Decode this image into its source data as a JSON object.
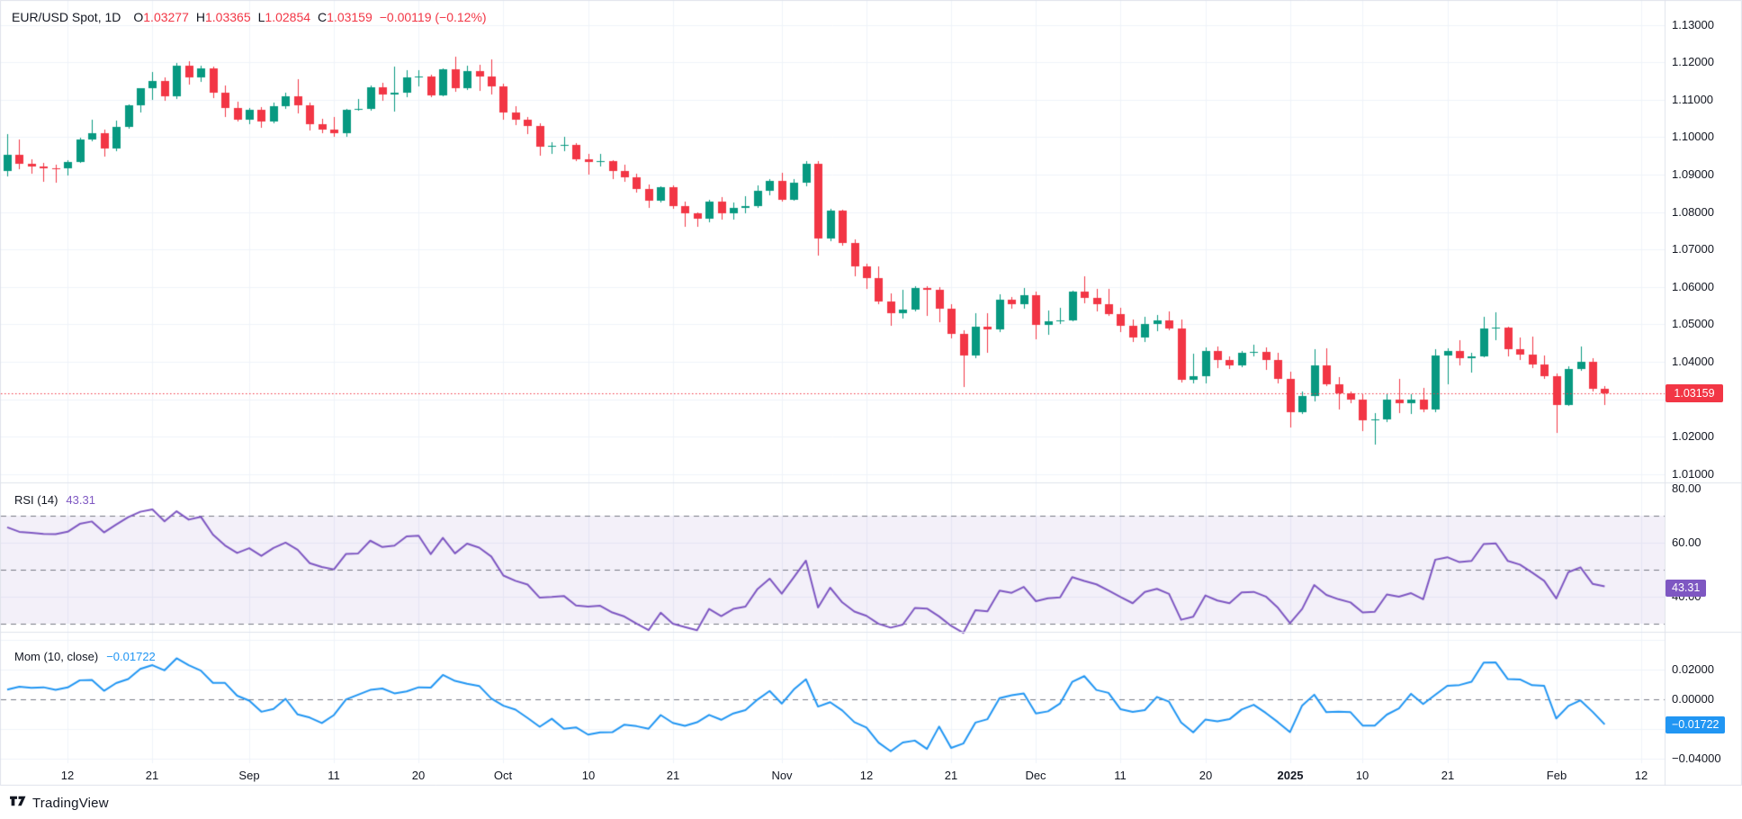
{
  "legend": {
    "symbol": "EUR/USD Spot, 1D",
    "items": [
      {
        "k": "O",
        "v": "1.03277"
      },
      {
        "k": "H",
        "v": "1.03365"
      },
      {
        "k": "L",
        "v": "1.02854"
      },
      {
        "k": "C",
        "v": "1.03159"
      }
    ],
    "change": "−0.00119 (−0.12%)"
  },
  "rsi_legend": {
    "title": "RSI (14)",
    "value": "43.31"
  },
  "mom_legend": {
    "title": "Mom (10, close)",
    "value": "−0.01722"
  },
  "badges": {
    "price": "1.03159",
    "rsi": "43.31",
    "mom": "−0.01722"
  },
  "logo": {
    "text": "TradingView"
  },
  "chart_data": {
    "type": "candlestick",
    "symbol": "EUR/USD Spot",
    "interval": "1D",
    "last_price": 1.03159,
    "colors": {
      "up": "#089981",
      "down": "#F23645",
      "grid": "#F0F3FA",
      "divider": "#E0E3EB",
      "dashed": "#787B86",
      "rsi_line": "#7E57C2",
      "rsi_band": "rgba(126,87,194,0.09)",
      "mom_line": "#2196F3",
      "price_line": "#F23645",
      "text": "#131722"
    },
    "indicators": {
      "rsi": {
        "period": 14,
        "last": 43.31,
        "upper": 70,
        "middle": 50,
        "lower": 30
      },
      "momentum": {
        "period": 10,
        "source": "close",
        "last": -0.01722
      }
    },
    "price_axis": [
      "1.13000",
      "1.12000",
      "1.11000",
      "1.10000",
      "1.09000",
      "1.08000",
      "1.07000",
      "1.06000",
      "1.05000",
      "1.04000",
      "1.02000",
      "1.01000"
    ],
    "rsi_axis": [
      "80.00",
      "60.00",
      "40.00"
    ],
    "mom_axis": [
      "0.02000",
      "0.00000",
      "−0.04000"
    ],
    "mom_gridlines": [
      0.04,
      0.02,
      -0.02,
      -0.04
    ],
    "rsi_gridlines": [
      60,
      40
    ],
    "time_axis": [
      {
        "label": "12",
        "index": 5
      },
      {
        "label": "21",
        "index": 12
      },
      {
        "label": "Sep",
        "index": 20
      },
      {
        "label": "11",
        "index": 27
      },
      {
        "label": "20",
        "index": 34
      },
      {
        "label": "Oct",
        "index": 41
      },
      {
        "label": "10",
        "index": 48
      },
      {
        "label": "21",
        "index": 55
      },
      {
        "label": "Nov",
        "index": 64
      },
      {
        "label": "12",
        "index": 71
      },
      {
        "label": "21",
        "index": 78
      },
      {
        "label": "Dec",
        "index": 85
      },
      {
        "label": "11",
        "index": 92
      },
      {
        "label": "20",
        "index": 99
      },
      {
        "label": "2025",
        "index": 106,
        "bold": true
      },
      {
        "label": "10",
        "index": 112
      },
      {
        "label": "21",
        "index": 119
      },
      {
        "label": "Feb",
        "index": 128
      },
      {
        "label": "12",
        "index": 135
      }
    ],
    "pre_closes": [
      1.089,
      1.0846,
      1.0849,
      1.084,
      1.0856,
      1.0857,
      1.0868,
      1.0885,
      1.0917,
      1.0921
    ],
    "candles": [
      [
        1.091,
        1.1008,
        1.0895,
        1.0952
      ],
      [
        1.0952,
        1.0995,
        1.0914,
        1.0928
      ],
      [
        1.0928,
        1.0941,
        1.0902,
        1.0923
      ],
      [
        1.0923,
        1.0932,
        1.0881,
        1.0918
      ],
      [
        1.0918,
        1.0927,
        1.0878,
        1.0917
      ],
      [
        1.0917,
        1.0938,
        1.0899,
        1.0934
      ],
      [
        1.0934,
        1.0999,
        1.0931,
        1.0993
      ],
      [
        1.0993,
        1.1047,
        1.0989,
        1.1012
      ],
      [
        1.1012,
        1.102,
        1.0949,
        1.0971
      ],
      [
        1.0971,
        1.1044,
        1.0963,
        1.1027
      ],
      [
        1.1027,
        1.1087,
        1.1022,
        1.1085
      ],
      [
        1.1085,
        1.1131,
        1.1065,
        1.113
      ],
      [
        1.113,
        1.1174,
        1.11,
        1.115
      ],
      [
        1.115,
        1.116,
        1.1098,
        1.111
      ],
      [
        1.111,
        1.1199,
        1.1103,
        1.119
      ],
      [
        1.119,
        1.1202,
        1.114,
        1.1161
      ],
      [
        1.1161,
        1.119,
        1.1147,
        1.1183
      ],
      [
        1.1183,
        1.1188,
        1.1104,
        1.112
      ],
      [
        1.112,
        1.1139,
        1.1055,
        1.1078
      ],
      [
        1.1078,
        1.1094,
        1.1042,
        1.1048
      ],
      [
        1.1048,
        1.1078,
        1.1034,
        1.1073
      ],
      [
        1.1073,
        1.108,
        1.1026,
        1.1043
      ],
      [
        1.1043,
        1.1093,
        1.1037,
        1.1082
      ],
      [
        1.1082,
        1.112,
        1.1075,
        1.111
      ],
      [
        1.111,
        1.1155,
        1.1064,
        1.1085
      ],
      [
        1.1085,
        1.1092,
        1.1018,
        1.1035
      ],
      [
        1.1035,
        1.105,
        1.101,
        1.102
      ],
      [
        1.102,
        1.1055,
        1.1002,
        1.1011
      ],
      [
        1.1011,
        1.1075,
        1.1001,
        1.1074
      ],
      [
        1.1074,
        1.1102,
        1.1071,
        1.1076
      ],
      [
        1.1076,
        1.1138,
        1.1072,
        1.1133
      ],
      [
        1.1133,
        1.1146,
        1.1098,
        1.1113
      ],
      [
        1.1113,
        1.1189,
        1.1069,
        1.1119
      ],
      [
        1.1119,
        1.1179,
        1.1108,
        1.116
      ],
      [
        1.116,
        1.118,
        1.1135,
        1.1163
      ],
      [
        1.1163,
        1.1167,
        1.1106,
        1.1111
      ],
      [
        1.1111,
        1.1183,
        1.1109,
        1.1181
      ],
      [
        1.1181,
        1.1214,
        1.1122,
        1.1132
      ],
      [
        1.1132,
        1.119,
        1.1126,
        1.1176
      ],
      [
        1.1176,
        1.1193,
        1.1124,
        1.1163
      ],
      [
        1.1163,
        1.1209,
        1.1113,
        1.1135
      ],
      [
        1.1135,
        1.1143,
        1.1046,
        1.1067
      ],
      [
        1.1067,
        1.1082,
        1.1032,
        1.1046
      ],
      [
        1.1046,
        1.1053,
        1.1008,
        1.1031
      ],
      [
        1.1031,
        1.1038,
        1.0951,
        1.0975
      ],
      [
        1.0975,
        1.0987,
        1.0955,
        1.0977
      ],
      [
        1.0977,
        1.1,
        1.0962,
        1.098
      ],
      [
        1.098,
        1.0984,
        1.0936,
        1.094
      ],
      [
        1.094,
        1.0955,
        1.09,
        1.0935
      ],
      [
        1.0935,
        1.0955,
        1.0921,
        1.0937
      ],
      [
        1.0937,
        1.0938,
        1.0889,
        1.091
      ],
      [
        1.091,
        1.0927,
        1.0881,
        1.0893
      ],
      [
        1.0893,
        1.0902,
        1.0853,
        1.0862
      ],
      [
        1.0862,
        1.0874,
        1.0811,
        1.083
      ],
      [
        1.083,
        1.087,
        1.0826,
        1.0866
      ],
      [
        1.0866,
        1.0872,
        1.081,
        1.0815
      ],
      [
        1.0815,
        1.0827,
        1.0761,
        1.0798
      ],
      [
        1.0798,
        1.08,
        1.0761,
        1.0782
      ],
      [
        1.0782,
        1.0832,
        1.0772,
        1.0827
      ],
      [
        1.0827,
        1.0839,
        1.0781,
        1.0796
      ],
      [
        1.0796,
        1.0826,
        1.078,
        1.0812
      ],
      [
        1.0812,
        1.0843,
        1.0796,
        1.0817
      ],
      [
        1.0817,
        1.0871,
        1.0812,
        1.0857
      ],
      [
        1.0857,
        1.0888,
        1.0844,
        1.0883
      ],
      [
        1.0883,
        1.0905,
        1.0828,
        1.0834
      ],
      [
        1.0834,
        1.0889,
        1.083,
        1.0878
      ],
      [
        1.0878,
        1.0937,
        1.0869,
        1.093
      ],
      [
        1.093,
        1.0937,
        1.0683,
        1.073
      ],
      [
        1.073,
        1.081,
        1.0722,
        1.0804
      ],
      [
        1.0804,
        1.0806,
        1.071,
        1.0718
      ],
      [
        1.0718,
        1.0728,
        1.0629,
        1.0655
      ],
      [
        1.0655,
        1.0663,
        1.0595,
        1.0624
      ],
      [
        1.0624,
        1.0655,
        1.0555,
        1.0562
      ],
      [
        1.0562,
        1.0582,
        1.0497,
        1.053
      ],
      [
        1.053,
        1.0592,
        1.0516,
        1.054
      ],
      [
        1.054,
        1.0601,
        1.0535,
        1.0597
      ],
      [
        1.0597,
        1.0603,
        1.0522,
        1.0593
      ],
      [
        1.0593,
        1.0599,
        1.0507,
        1.0543
      ],
      [
        1.0543,
        1.0555,
        1.0462,
        1.0474
      ],
      [
        1.0474,
        1.0484,
        1.0333,
        1.0417
      ],
      [
        1.0417,
        1.053,
        1.0411,
        1.0495
      ],
      [
        1.0495,
        1.053,
        1.0425,
        1.0487
      ],
      [
        1.0487,
        1.058,
        1.048,
        1.0566
      ],
      [
        1.0566,
        1.0573,
        1.0541,
        1.0554
      ],
      [
        1.0554,
        1.0598,
        1.0542,
        1.0577
      ],
      [
        1.0577,
        1.0588,
        1.0461,
        1.0498
      ],
      [
        1.0498,
        1.0538,
        1.0472,
        1.0509
      ],
      [
        1.0509,
        1.0544,
        1.0501,
        1.0512
      ],
      [
        1.0512,
        1.059,
        1.0508,
        1.0588
      ],
      [
        1.0588,
        1.0629,
        1.0556,
        1.057
      ],
      [
        1.057,
        1.0594,
        1.0536,
        1.0555
      ],
      [
        1.0555,
        1.0594,
        1.0522,
        1.0527
      ],
      [
        1.0527,
        1.0544,
        1.048,
        1.0496
      ],
      [
        1.0496,
        1.0514,
        1.0453,
        1.0466
      ],
      [
        1.0466,
        1.0521,
        1.0453,
        1.0501
      ],
      [
        1.0501,
        1.0525,
        1.0481,
        1.0511
      ],
      [
        1.0511,
        1.0535,
        1.0484,
        1.049
      ],
      [
        1.049,
        1.0513,
        1.0344,
        1.0353
      ],
      [
        1.0353,
        1.0422,
        1.0343,
        1.0362
      ],
      [
        1.0362,
        1.0438,
        1.0342,
        1.043
      ],
      [
        1.043,
        1.044,
        1.0384,
        1.0404
      ],
      [
        1.0404,
        1.0414,
        1.0382,
        1.039
      ],
      [
        1.039,
        1.0428,
        1.0385,
        1.0424
      ],
      [
        1.0424,
        1.0445,
        1.0415,
        1.0426
      ],
      [
        1.0426,
        1.0438,
        1.0379,
        1.0406
      ],
      [
        1.0406,
        1.0425,
        1.0343,
        1.0354
      ],
      [
        1.0354,
        1.0374,
        1.0224,
        1.0266
      ],
      [
        1.0266,
        1.032,
        1.026,
        1.0308
      ],
      [
        1.0308,
        1.0435,
        1.0294,
        1.039
      ],
      [
        1.039,
        1.0437,
        1.0336,
        1.034
      ],
      [
        1.034,
        1.036,
        1.0273,
        1.0317
      ],
      [
        1.0317,
        1.0321,
        1.029,
        1.03
      ],
      [
        1.03,
        1.0313,
        1.0215,
        1.0244
      ],
      [
        1.0244,
        1.0263,
        1.0178,
        1.0246
      ],
      [
        1.0246,
        1.0313,
        1.0238,
        1.03
      ],
      [
        1.03,
        1.0354,
        1.0263,
        1.0289
      ],
      [
        1.0289,
        1.0313,
        1.0261,
        1.03
      ],
      [
        1.03,
        1.0331,
        1.0266,
        1.0273
      ],
      [
        1.0273,
        1.0434,
        1.0266,
        1.0417
      ],
      [
        1.0417,
        1.0436,
        1.034,
        1.0428
      ],
      [
        1.0428,
        1.0457,
        1.039,
        1.041
      ],
      [
        1.041,
        1.0425,
        1.0371,
        1.0415
      ],
      [
        1.0415,
        1.0521,
        1.0412,
        1.0488
      ],
      [
        1.0488,
        1.0533,
        1.0458,
        1.0491
      ],
      [
        1.0491,
        1.0494,
        1.0415,
        1.0433
      ],
      [
        1.0433,
        1.0466,
        1.0406,
        1.042
      ],
      [
        1.042,
        1.0468,
        1.0383,
        1.0392
      ],
      [
        1.0392,
        1.0418,
        1.0354,
        1.0361
      ],
      [
        1.0361,
        1.0368,
        1.021,
        1.0285
      ],
      [
        1.0285,
        1.0389,
        1.0283,
        1.038
      ],
      [
        1.038,
        1.0442,
        1.0375,
        1.04
      ],
      [
        1.04,
        1.041,
        1.0321,
        1.03278
      ],
      [
        1.03277,
        1.03365,
        1.02854,
        1.03159
      ]
    ]
  }
}
